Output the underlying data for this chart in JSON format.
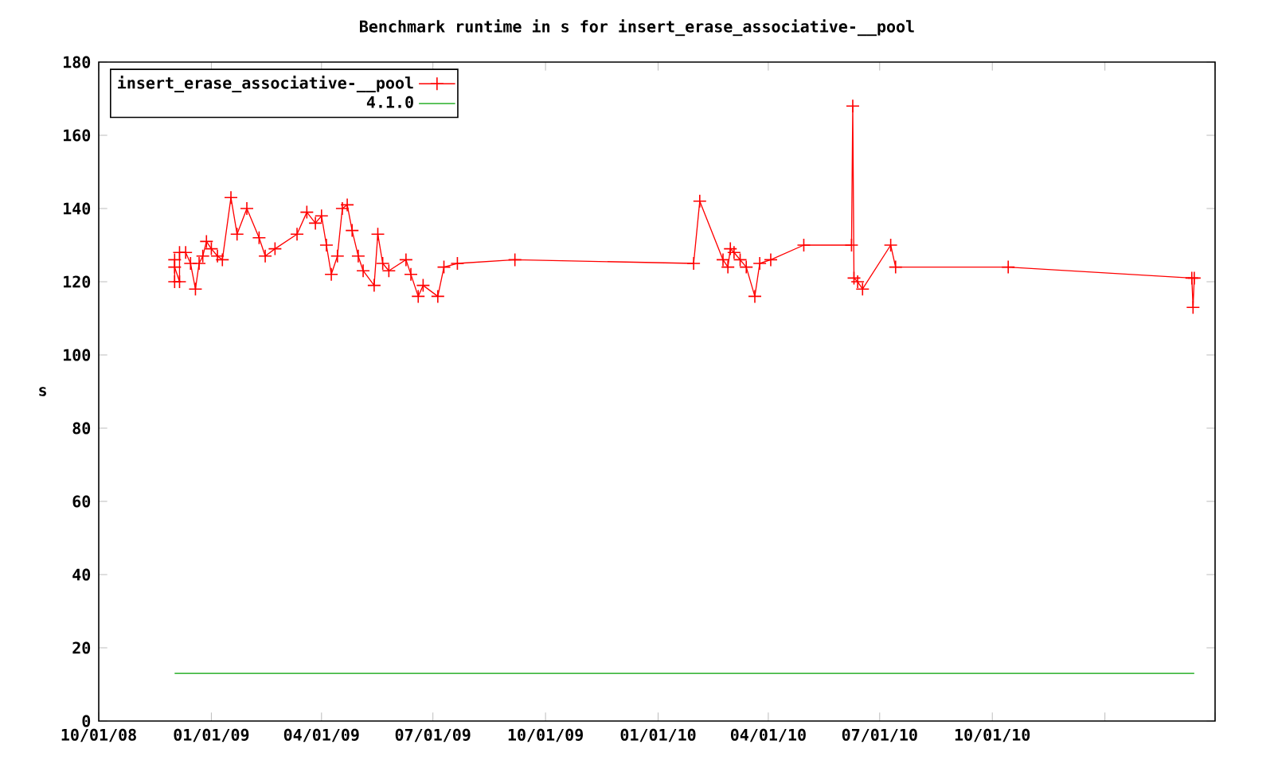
{
  "chart_data": {
    "type": "line",
    "title": "Benchmark runtime in s for insert_erase_associative-__pool",
    "ylabel": "s",
    "xlim": [
      "2008-10-01",
      "2011-04-01"
    ],
    "xticks": [
      {
        "value": "2008-10-01",
        "label": "10/01/08"
      },
      {
        "value": "2009-01-01",
        "label": "01/01/09"
      },
      {
        "value": "2009-04-01",
        "label": "04/01/09"
      },
      {
        "value": "2009-07-01",
        "label": "07/01/09"
      },
      {
        "value": "2009-10-01",
        "label": "10/01/09"
      },
      {
        "value": "2010-01-01",
        "label": "01/01/10"
      },
      {
        "value": "2010-04-01",
        "label": "04/01/10"
      },
      {
        "value": "2010-07-01",
        "label": "07/01/10"
      },
      {
        "value": "2010-10-01",
        "label": "10/01/10"
      },
      {
        "value": "2011-01-01",
        "label": null
      },
      {
        "value": "2011-04-01",
        "label": null
      }
    ],
    "ylim": [
      0,
      180
    ],
    "yticks": [
      0,
      20,
      40,
      60,
      80,
      100,
      120,
      140,
      160,
      180
    ],
    "legend": "top left",
    "series": [
      {
        "name": "insert_erase_associative-__pool",
        "color": "#ff0000",
        "marker": "cross",
        "x": [
          "2008-12-02",
          "2008-12-02",
          "2008-12-02",
          "2008-12-06",
          "2008-12-06",
          "2008-12-11",
          "2008-12-15",
          "2008-12-19",
          "2008-12-22",
          "2008-12-25",
          "2008-12-28",
          "2009-01-01",
          "2009-01-06",
          "2009-01-10",
          "2009-01-17",
          "2009-01-22",
          "2009-01-30",
          "2009-02-09",
          "2009-02-14",
          "2009-02-22",
          "2009-03-12",
          "2009-03-20",
          "2009-03-27",
          "2009-04-01",
          "2009-04-05",
          "2009-04-09",
          "2009-04-14",
          "2009-04-18",
          "2009-04-22",
          "2009-04-26",
          "2009-05-01",
          "2009-05-05",
          "2009-05-14",
          "2009-05-17",
          "2009-05-21",
          "2009-05-26",
          "2009-06-09",
          "2009-06-13",
          "2009-06-19",
          "2009-06-23",
          "2009-07-05",
          "2009-07-10",
          "2009-07-21",
          "2009-09-06",
          "2010-01-30",
          "2010-02-04",
          "2010-02-23",
          "2010-02-27",
          "2010-03-01",
          "2010-03-04",
          "2010-03-09",
          "2010-03-14",
          "2010-03-21",
          "2010-03-25",
          "2010-04-03",
          "2010-04-30",
          "2010-06-08",
          "2010-06-09",
          "2010-06-10",
          "2010-06-13",
          "2010-06-17",
          "2010-07-10",
          "2010-07-14",
          "2010-10-14",
          "2011-03-13",
          "2011-03-14",
          "2011-03-15"
        ],
        "values": [
          126,
          120,
          124,
          120,
          128,
          128,
          125,
          118,
          125,
          127,
          131,
          129,
          127,
          126,
          143,
          133,
          140,
          132,
          127,
          129,
          133,
          139,
          136,
          138,
          130,
          122,
          127,
          140,
          141,
          134,
          127,
          123,
          119,
          133,
          125,
          123,
          126,
          122,
          116,
          119,
          116,
          124,
          125,
          126,
          125,
          142,
          126,
          124,
          129,
          128,
          126,
          124,
          116,
          125,
          126,
          130,
          130,
          168,
          121,
          120,
          118,
          130,
          124,
          124,
          121,
          113,
          121
        ]
      },
      {
        "name": "4.1.0",
        "color": "#00a000",
        "marker": "none",
        "x": [
          "2008-12-02",
          "2011-03-15"
        ],
        "values": [
          13,
          13
        ]
      }
    ]
  }
}
